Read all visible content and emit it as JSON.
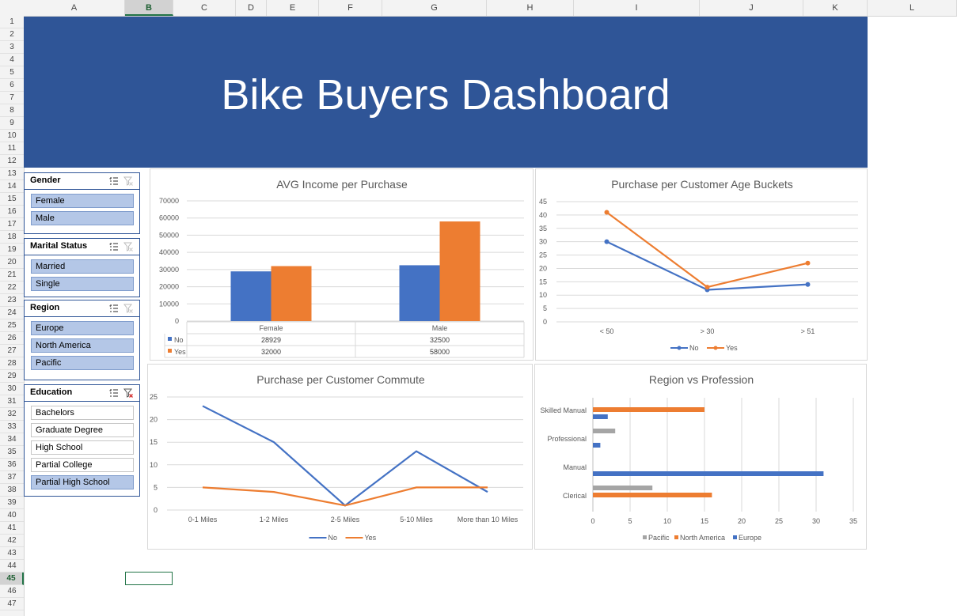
{
  "spreadsheet": {
    "columns": [
      "A",
      "B",
      "C",
      "D",
      "E",
      "F",
      "G",
      "H",
      "I",
      "J",
      "K",
      "L"
    ],
    "selected_column": "B",
    "rows": [
      "1",
      "2",
      "3",
      "4",
      "5",
      "6",
      "7",
      "8",
      "9",
      "10",
      "11",
      "12",
      "13",
      "14",
      "15",
      "16",
      "17",
      "18",
      "19",
      "20",
      "21",
      "22",
      "23",
      "24",
      "25",
      "26",
      "27",
      "28",
      "29",
      "30",
      "31",
      "32",
      "33",
      "34",
      "35",
      "36",
      "37",
      "38",
      "39",
      "40",
      "41",
      "42",
      "43",
      "44",
      "45",
      "46",
      "47"
    ],
    "selected_row": "45"
  },
  "banner": {
    "title": "Bike Buyers Dashboard",
    "color": "#2f5597"
  },
  "slicers": [
    {
      "title": "Gender",
      "items": [
        {
          "label": "Female",
          "selected": true
        },
        {
          "label": "Male",
          "selected": true
        }
      ],
      "filtered": false
    },
    {
      "title": "Marital Status",
      "items": [
        {
          "label": "Married",
          "selected": true
        },
        {
          "label": "Single",
          "selected": true
        }
      ],
      "filtered": false
    },
    {
      "title": "Region",
      "items": [
        {
          "label": "Europe",
          "selected": true
        },
        {
          "label": "North America",
          "selected": true
        },
        {
          "label": "Pacific",
          "selected": true
        }
      ],
      "filtered": false
    },
    {
      "title": "Education",
      "items": [
        {
          "label": "Bachelors",
          "selected": false
        },
        {
          "label": "Graduate Degree",
          "selected": false
        },
        {
          "label": "High School",
          "selected": false
        },
        {
          "label": "Partial College",
          "selected": false
        },
        {
          "label": "Partial High School",
          "selected": true
        }
      ],
      "filtered": true
    }
  ],
  "colors": {
    "blue": "#4472c4",
    "orange": "#ed7d31",
    "gray": "#a5a5a5"
  },
  "chart_data": [
    {
      "type": "bar",
      "title": "AVG Income per Purchase",
      "categories": [
        "Female",
        "Male"
      ],
      "series": [
        {
          "name": "No",
          "values": [
            28929,
            32500
          ]
        },
        {
          "name": "Yes",
          "values": [
            32000,
            58000
          ]
        }
      ],
      "ylim": [
        0,
        70000
      ],
      "yticks": [
        "0",
        "10000",
        "20000",
        "30000",
        "40000",
        "50000",
        "60000",
        "70000"
      ],
      "data_table": {
        "headers": [
          "Female",
          "Male"
        ],
        "rows": [
          {
            "label": "No",
            "values": [
              "28929",
              "32500"
            ]
          },
          {
            "label": "Yes",
            "values": [
              "32000",
              "58000"
            ]
          }
        ]
      }
    },
    {
      "type": "line",
      "title": "Purchase per Customer Age Buckets",
      "categories": [
        "< 50",
        "> 30",
        "> 51"
      ],
      "series": [
        {
          "name": "No",
          "values": [
            30,
            12,
            14
          ]
        },
        {
          "name": "Yes",
          "values": [
            41,
            13,
            22
          ]
        }
      ],
      "ylim": [
        0,
        45
      ],
      "yticks": [
        "0",
        "5",
        "10",
        "15",
        "20",
        "25",
        "30",
        "35",
        "40",
        "45"
      ],
      "legend": "bottom"
    },
    {
      "type": "line",
      "title": "Purchase per Customer Commute",
      "categories": [
        "0-1 Miles",
        "1-2 Miles",
        "2-5 Miles",
        "5-10 Miles",
        "More than 10 Miles"
      ],
      "series": [
        {
          "name": "No",
          "values": [
            23,
            15,
            1,
            13,
            4
          ]
        },
        {
          "name": "Yes",
          "values": [
            5,
            4,
            1,
            5,
            5
          ]
        }
      ],
      "ylim": [
        0,
        25
      ],
      "yticks": [
        "0",
        "5",
        "10",
        "15",
        "20",
        "25"
      ],
      "legend": "bottom"
    },
    {
      "type": "bar",
      "orientation": "horizontal",
      "title": "Region vs Profession",
      "categories": [
        "Skilled Manual",
        "Professional",
        "Manual",
        "Clerical"
      ],
      "series": [
        {
          "name": "Pacific",
          "values": [
            0,
            3,
            0,
            8
          ]
        },
        {
          "name": "North America",
          "values": [
            15,
            0,
            0,
            16
          ]
        },
        {
          "name": "Europe",
          "values": [
            2,
            1,
            31,
            0
          ]
        }
      ],
      "xlim": [
        0,
        35
      ],
      "xticks": [
        "0",
        "5",
        "10",
        "15",
        "20",
        "25",
        "30",
        "35"
      ],
      "legend": "bottom"
    }
  ]
}
